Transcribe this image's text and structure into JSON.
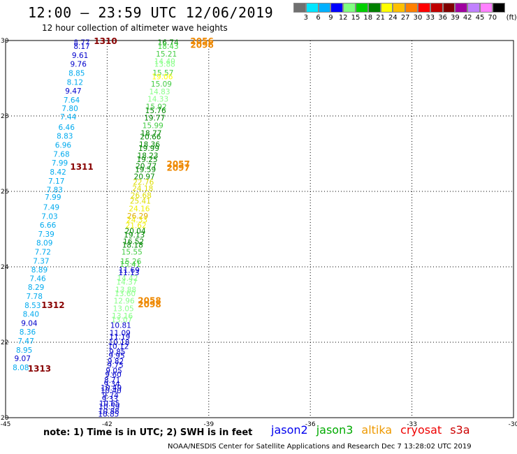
{
  "header": {
    "title": "12:00 – 23:59 UTC 12/06/2019",
    "subtitle": "12 hour collection of altimeter wave heights"
  },
  "colorbar": {
    "unit": "(ft)",
    "bins": [
      {
        "label": "3",
        "color": "#707070"
      },
      {
        "label": "6",
        "color": "#00e5ff"
      },
      {
        "label": "9",
        "color": "#00b0ff"
      },
      {
        "label": "12",
        "color": "#0000ff"
      },
      {
        "label": "15",
        "color": "#80ff80"
      },
      {
        "label": "18",
        "color": "#00d000"
      },
      {
        "label": "21",
        "color": "#008000"
      },
      {
        "label": "24",
        "color": "#ffff00"
      },
      {
        "label": "27",
        "color": "#ffc000"
      },
      {
        "label": "30",
        "color": "#ff8000"
      },
      {
        "label": "33",
        "color": "#ff0000"
      },
      {
        "label": "36",
        "color": "#c00000"
      },
      {
        "label": "39",
        "color": "#800000"
      },
      {
        "label": "42",
        "color": "#a000a0"
      },
      {
        "label": "45",
        "color": "#c080ff"
      },
      {
        "label": "70",
        "color": "#ff80ff"
      },
      {
        "label": "",
        "color": "#000000"
      }
    ]
  },
  "map": {
    "lon_range": [
      -45,
      -30
    ],
    "lat_range": [
      20,
      30
    ],
    "lon_ticks": [
      "-45",
      "-42",
      "-39",
      "-36",
      "-33",
      "-30"
    ],
    "lat_ticks": [
      "30",
      "28",
      "26",
      "24",
      "22",
      "20"
    ]
  },
  "tracks": {
    "left_track": [
      {
        "lat": 29.95,
        "lon": -42.75,
        "v": "8.77",
        "c": "#2222cc"
      },
      {
        "lat": 29.85,
        "lon": -42.75,
        "v": "8.17",
        "c": "#0000cc"
      },
      {
        "lat": 29.61,
        "lon": -42.8,
        "v": "9.61",
        "c": "#0000cc"
      },
      {
        "lat": 29.38,
        "lon": -42.85,
        "v": "9.76",
        "c": "#0000cc"
      },
      {
        "lat": 29.14,
        "lon": -42.9,
        "v": "8.85",
        "c": "#00aaee"
      },
      {
        "lat": 28.9,
        "lon": -42.95,
        "v": "8.12",
        "c": "#00aaee"
      },
      {
        "lat": 28.67,
        "lon": -43.0,
        "v": "9.47",
        "c": "#0000cc"
      },
      {
        "lat": 28.43,
        "lon": -43.05,
        "v": "7.64",
        "c": "#00aaee"
      },
      {
        "lat": 28.2,
        "lon": -43.1,
        "v": "7.80",
        "c": "#00aaee"
      },
      {
        "lat": 27.98,
        "lon": -43.15,
        "v": "7.44",
        "c": "#00aaee"
      },
      {
        "lat": 27.7,
        "lon": -43.2,
        "v": "6.46",
        "c": "#00aaee"
      },
      {
        "lat": 27.47,
        "lon": -43.25,
        "v": "8.83",
        "c": "#00aaee"
      },
      {
        "lat": 27.23,
        "lon": -43.3,
        "v": "6.96",
        "c": "#00aaee"
      },
      {
        "lat": 26.99,
        "lon": -43.35,
        "v": "7.68",
        "c": "#00aaee"
      },
      {
        "lat": 26.76,
        "lon": -43.4,
        "v": "7.99",
        "c": "#00aaee"
      },
      {
        "lat": 26.52,
        "lon": -43.45,
        "v": "8.42",
        "c": "#00aaee"
      },
      {
        "lat": 26.28,
        "lon": -43.5,
        "v": "7.17",
        "c": "#00aaee"
      },
      {
        "lat": 26.05,
        "lon": -43.55,
        "v": "7.83",
        "c": "#00aaee"
      },
      {
        "lat": 25.85,
        "lon": -43.6,
        "v": "7.99",
        "c": "#00aaee"
      },
      {
        "lat": 25.58,
        "lon": -43.65,
        "v": "7.49",
        "c": "#00aaee"
      },
      {
        "lat": 25.34,
        "lon": -43.7,
        "v": "7.03",
        "c": "#00aaee"
      },
      {
        "lat": 25.11,
        "lon": -43.75,
        "v": "6.66",
        "c": "#00aaee"
      },
      {
        "lat": 24.87,
        "lon": -43.8,
        "v": "7.39",
        "c": "#00aaee"
      },
      {
        "lat": 24.64,
        "lon": -43.85,
        "v": "8.09",
        "c": "#00aaee"
      },
      {
        "lat": 24.4,
        "lon": -43.9,
        "v": "7.72",
        "c": "#00aaee"
      },
      {
        "lat": 24.16,
        "lon": -43.95,
        "v": "7.37",
        "c": "#00aaee"
      },
      {
        "lat": 23.93,
        "lon": -44.0,
        "v": "8.89",
        "c": "#00aaee"
      },
      {
        "lat": 23.69,
        "lon": -44.05,
        "v": "7.46",
        "c": "#00aaee"
      },
      {
        "lat": 23.46,
        "lon": -44.1,
        "v": "8.29",
        "c": "#00aaee"
      },
      {
        "lat": 23.22,
        "lon": -44.15,
        "v": "7.78",
        "c": "#00aaee"
      },
      {
        "lat": 22.98,
        "lon": -44.2,
        "v": "8.53",
        "c": "#00aaee"
      },
      {
        "lat": 22.75,
        "lon": -44.25,
        "v": "8.40",
        "c": "#00aaee"
      },
      {
        "lat": 22.51,
        "lon": -44.3,
        "v": "9.04",
        "c": "#0000cc"
      },
      {
        "lat": 22.28,
        "lon": -44.35,
        "v": "8.36",
        "c": "#00aaee"
      },
      {
        "lat": 22.04,
        "lon": -44.4,
        "v": "7.47",
        "c": "#00aaee"
      },
      {
        "lat": 21.8,
        "lon": -44.45,
        "v": "8.95",
        "c": "#00aaee"
      },
      {
        "lat": 21.57,
        "lon": -44.5,
        "v": "9.07",
        "c": "#0000cc"
      },
      {
        "lat": 21.33,
        "lon": -44.55,
        "v": "8.08",
        "c": "#00aaee"
      }
    ],
    "right_track": [
      {
        "lat": 29.95,
        "lon": -40.2,
        "v": "16.74",
        "c": "#008800"
      },
      {
        "lat": 29.85,
        "lon": -40.2,
        "v": "18.43",
        "c": "#44dd44"
      },
      {
        "lat": 29.65,
        "lon": -40.25,
        "v": "15.21",
        "c": "#44cc44"
      },
      {
        "lat": 29.45,
        "lon": -40.3,
        "v": "14.40",
        "c": "#88ff88"
      },
      {
        "lat": 29.38,
        "lon": -40.3,
        "v": "13.88",
        "c": "#88ff88"
      },
      {
        "lat": 29.15,
        "lon": -40.35,
        "v": "15.57",
        "c": "#44cc44"
      },
      {
        "lat": 29.05,
        "lon": -40.37,
        "v": "19.06",
        "c": "#ffff00"
      },
      {
        "lat": 28.85,
        "lon": -40.4,
        "v": "15.09",
        "c": "#44cc44"
      },
      {
        "lat": 28.65,
        "lon": -40.45,
        "v": "14.83",
        "c": "#88ff88"
      },
      {
        "lat": 28.45,
        "lon": -40.5,
        "v": "14.33",
        "c": "#88ff88"
      },
      {
        "lat": 28.25,
        "lon": -40.55,
        "v": "15.92",
        "c": "#44cc44"
      },
      {
        "lat": 28.15,
        "lon": -40.57,
        "v": "15.76",
        "c": "#008800"
      },
      {
        "lat": 27.95,
        "lon": -40.6,
        "v": "19.77",
        "c": "#008800"
      },
      {
        "lat": 27.75,
        "lon": -40.65,
        "v": "15.99",
        "c": "#44cc44"
      },
      {
        "lat": 27.55,
        "lon": -40.7,
        "v": "18.77",
        "c": "#008800"
      },
      {
        "lat": 27.45,
        "lon": -40.72,
        "v": "20.66",
        "c": "#008800"
      },
      {
        "lat": 27.25,
        "lon": -40.75,
        "v": "18.36",
        "c": "#008800"
      },
      {
        "lat": 27.15,
        "lon": -40.77,
        "v": "19.99",
        "c": "#008800"
      },
      {
        "lat": 26.95,
        "lon": -40.8,
        "v": "18.23",
        "c": "#008800"
      },
      {
        "lat": 26.85,
        "lon": -40.82,
        "v": "19.25",
        "c": "#008800"
      },
      {
        "lat": 26.68,
        "lon": -40.85,
        "v": "20.77",
        "c": "#008800"
      },
      {
        "lat": 26.58,
        "lon": -40.87,
        "v": "19.59",
        "c": "#008800"
      },
      {
        "lat": 26.4,
        "lon": -40.9,
        "v": "20.97",
        "c": "#008800"
      },
      {
        "lat": 26.25,
        "lon": -40.93,
        "v": "22.76",
        "c": "#dddd00"
      },
      {
        "lat": 26.08,
        "lon": -40.95,
        "v": "24.18",
        "c": "#dddd00"
      },
      {
        "lat": 25.9,
        "lon": -41.0,
        "v": "26.68",
        "c": "#dddd00"
      },
      {
        "lat": 25.75,
        "lon": -41.02,
        "v": "25.41",
        "c": "#dddd00"
      },
      {
        "lat": 25.55,
        "lon": -41.05,
        "v": "24.16",
        "c": "#eeee00"
      },
      {
        "lat": 25.35,
        "lon": -41.1,
        "v": "26.29",
        "c": "#ddaa00"
      },
      {
        "lat": 25.25,
        "lon": -41.12,
        "v": "24.33",
        "c": "#eeee00"
      },
      {
        "lat": 25.1,
        "lon": -41.15,
        "v": "21.62",
        "c": "#eeee00"
      },
      {
        "lat": 24.95,
        "lon": -41.17,
        "v": "20.04",
        "c": "#008800"
      },
      {
        "lat": 24.85,
        "lon": -41.2,
        "v": "19.13",
        "c": "#008800"
      },
      {
        "lat": 24.68,
        "lon": -41.22,
        "v": "16.52",
        "c": "#008800"
      },
      {
        "lat": 24.58,
        "lon": -41.25,
        "v": "18.18",
        "c": "#008800"
      },
      {
        "lat": 24.4,
        "lon": -41.27,
        "v": "15.55",
        "c": "#44cc44"
      },
      {
        "lat": 24.15,
        "lon": -41.3,
        "v": "15.26",
        "c": "#44cc44"
      },
      {
        "lat": 24.07,
        "lon": -41.32,
        "v": "15.41",
        "c": "#44cc44"
      },
      {
        "lat": 23.92,
        "lon": -41.35,
        "v": "11.69",
        "c": "#0000cc"
      },
      {
        "lat": 23.85,
        "lon": -41.36,
        "v": "11.13",
        "c": "#0000cc"
      },
      {
        "lat": 23.7,
        "lon": -41.4,
        "v": "14.42",
        "c": "#88ff88"
      },
      {
        "lat": 23.6,
        "lon": -41.42,
        "v": "14.37",
        "c": "#88ff88"
      },
      {
        "lat": 23.4,
        "lon": -41.45,
        "v": "13.88",
        "c": "#88ff88"
      },
      {
        "lat": 23.3,
        "lon": -41.47,
        "v": "13.60",
        "c": "#88ff88"
      },
      {
        "lat": 23.1,
        "lon": -41.5,
        "v": "12.96",
        "c": "#88ff88"
      },
      {
        "lat": 22.9,
        "lon": -41.52,
        "v": "13.05",
        "c": "#88ff88"
      },
      {
        "lat": 22.7,
        "lon": -41.55,
        "v": "13.16",
        "c": "#88ff88"
      },
      {
        "lat": 22.6,
        "lon": -41.57,
        "v": "13.07",
        "c": "#88ff88"
      },
      {
        "lat": 22.45,
        "lon": -41.6,
        "v": "10.81",
        "c": "#0000cc"
      },
      {
        "lat": 22.25,
        "lon": -41.62,
        "v": "11.09",
        "c": "#0000cc"
      },
      {
        "lat": 22.15,
        "lon": -41.63,
        "v": "11.19",
        "c": "#0000cc"
      },
      {
        "lat": 22.0,
        "lon": -41.65,
        "v": "10.18",
        "c": "#0000cc"
      },
      {
        "lat": 21.9,
        "lon": -41.67,
        "v": "10.12",
        "c": "#0000cc"
      },
      {
        "lat": 21.75,
        "lon": -41.7,
        "v": "9.85",
        "c": "#0000cc"
      },
      {
        "lat": 21.65,
        "lon": -41.72,
        "v": "9.95",
        "c": "#0000cc"
      },
      {
        "lat": 21.5,
        "lon": -41.75,
        "v": "9.82",
        "c": "#0000cc"
      },
      {
        "lat": 21.4,
        "lon": -41.76,
        "v": "9.75",
        "c": "#0000cc"
      },
      {
        "lat": 21.25,
        "lon": -41.8,
        "v": "9.05",
        "c": "#0000cc"
      },
      {
        "lat": 21.15,
        "lon": -41.82,
        "v": "9.60",
        "c": "#0000cc"
      },
      {
        "lat": 21.0,
        "lon": -41.85,
        "v": "8.71",
        "c": "#0000cc"
      },
      {
        "lat": 20.9,
        "lon": -41.86,
        "v": "9.34",
        "c": "#0000cc"
      },
      {
        "lat": 20.8,
        "lon": -41.88,
        "v": "10.49",
        "c": "#0000cc"
      },
      {
        "lat": 20.72,
        "lon": -41.89,
        "v": "10.40",
        "c": "#0000cc"
      },
      {
        "lat": 20.6,
        "lon": -41.9,
        "v": "9.74",
        "c": "#0000cc"
      },
      {
        "lat": 20.5,
        "lon": -41.92,
        "v": "9.33",
        "c": "#0000cc"
      },
      {
        "lat": 20.38,
        "lon": -41.93,
        "v": "10.65",
        "c": "#0000cc"
      },
      {
        "lat": 20.3,
        "lon": -41.94,
        "v": "10.59",
        "c": "#0000cc"
      },
      {
        "lat": 20.18,
        "lon": -41.95,
        "v": "10.88",
        "c": "#0000cc"
      },
      {
        "lat": 20.1,
        "lon": -41.96,
        "v": "10.85",
        "c": "#0000cc"
      }
    ],
    "pass_labels": [
      {
        "lat": 29.98,
        "lon": -42.05,
        "t": "1310",
        "c": "#880000"
      },
      {
        "lat": 26.65,
        "lon": -42.75,
        "t": "1311",
        "c": "#880000"
      },
      {
        "lat": 22.98,
        "lon": -43.6,
        "t": "1312",
        "c": "#880000"
      },
      {
        "lat": 21.3,
        "lon": -44.0,
        "t": "1313",
        "c": "#880000"
      },
      {
        "lat": 29.98,
        "lon": -39.2,
        "t": "2056",
        "c": "#ee8800"
      },
      {
        "lat": 29.88,
        "lon": -39.2,
        "t": "2096",
        "c": "#ee8800"
      },
      {
        "lat": 26.72,
        "lon": -39.9,
        "t": "2057",
        "c": "#ee8800"
      },
      {
        "lat": 26.62,
        "lon": -39.9,
        "t": "2097",
        "c": "#ee8800"
      },
      {
        "lat": 23.1,
        "lon": -40.75,
        "t": "2058",
        "c": "#ee8800"
      },
      {
        "lat": 23.0,
        "lon": -40.75,
        "t": "2098",
        "c": "#ee8800"
      }
    ]
  },
  "footer": {
    "note": "note:  1) Time is in UTC; 2) SWH is in feet",
    "legend": [
      {
        "label": "jason2",
        "color": "#0000ee"
      },
      {
        "label": "jason3",
        "color": "#00aa00"
      },
      {
        "label": "altika",
        "color": "#ee9900"
      },
      {
        "label": "cryosat",
        "color": "#ee0000"
      },
      {
        "label": "s3a",
        "color": "#cc0000"
      }
    ],
    "credit": "NOAA/NESDIS Center for Satellite Applications and Research    Dec  7 13:28:02 UTC 2019"
  }
}
